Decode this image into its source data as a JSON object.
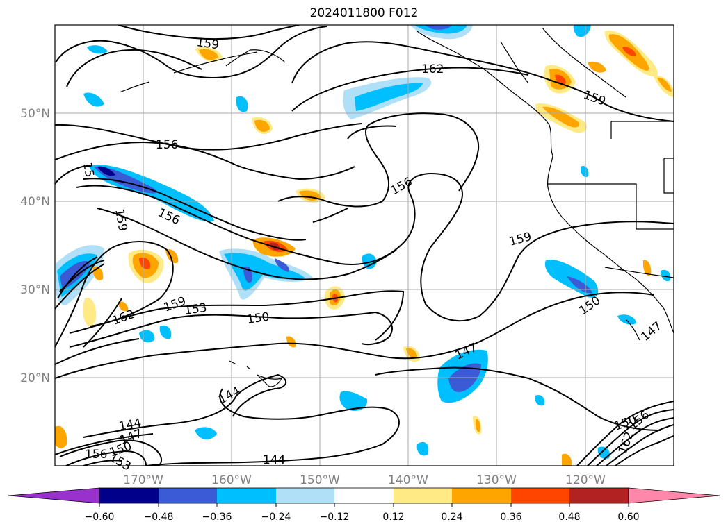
{
  "title": "2024011800 F012",
  "lon_labels": [
    "170°W",
    "160°W",
    "150°W",
    "140°W",
    "130°W",
    "120°W"
  ],
  "lat_labels": [
    "50°N",
    "40°N",
    "30°N",
    "20°N"
  ],
  "contour_labels": [
    "159",
    "162",
    "159",
    "156",
    "156",
    "156",
    "159",
    "159",
    "162",
    "159",
    "153",
    "150",
    "150",
    "147",
    "147",
    "144",
    "144",
    "144",
    "147",
    "150",
    "156",
    "153",
    "150",
    "156",
    "162",
    "15"
  ],
  "colorbar": {
    "ticks": [
      "−0.60",
      "−0.48",
      "−0.36",
      "−0.24",
      "−0.12",
      "0.12",
      "0.24",
      "0.36",
      "0.48",
      "0.60"
    ],
    "colors": [
      "#9932cc",
      "#00008b",
      "#3b5bd6",
      "#00bfff",
      "#b0e0f8",
      "#ffffff",
      "#ffea85",
      "#ffa500",
      "#ff4500",
      "#b22222",
      "#ff88aa"
    ]
  },
  "colors": {
    "contour": "#000000",
    "grid": "#aaaaaa",
    "axis_label": "#808080"
  }
}
